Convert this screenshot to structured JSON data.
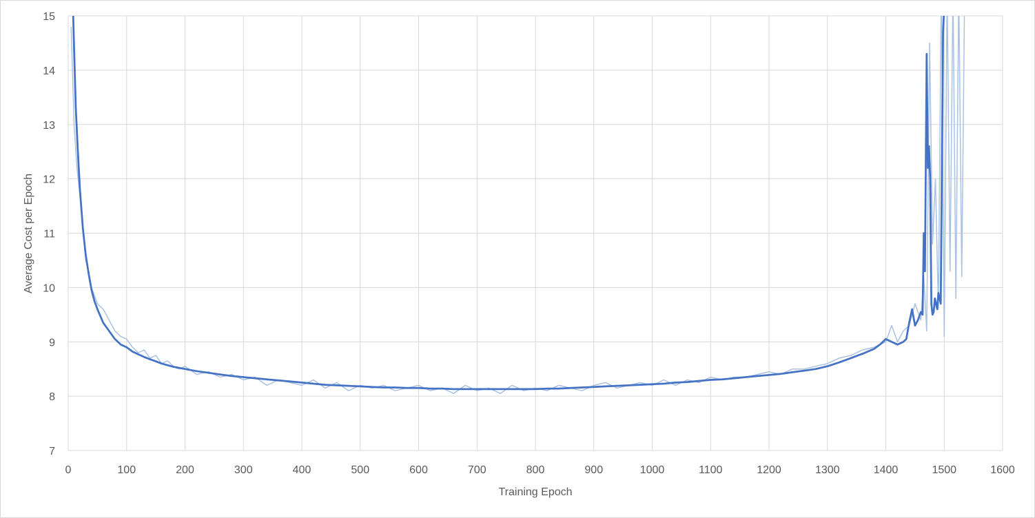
{
  "chart_data": {
    "type": "line",
    "xlabel": "Training Epoch",
    "ylabel": "Average Cost per Epoch",
    "xlim": [
      0,
      1600
    ],
    "ylim": [
      7,
      15
    ],
    "x_ticks": [
      "0",
      "100",
      "200",
      "300",
      "400",
      "500",
      "600",
      "700",
      "800",
      "900",
      "1000",
      "1100",
      "1200",
      "1300",
      "1400",
      "1500",
      "1600"
    ],
    "y_ticks": [
      "7",
      "8",
      "9",
      "10",
      "11",
      "12",
      "13",
      "14",
      "15"
    ],
    "grid": true,
    "legend": "none",
    "colors": {
      "raw": "#a9c1e3",
      "smoothed": "#4472c4",
      "grid": "#d9d9d9",
      "text": "#595959"
    },
    "series": [
      {
        "role": "raw",
        "x": [
          5,
          10,
          15,
          20,
          25,
          30,
          35,
          40,
          50,
          60,
          70,
          80,
          90,
          100,
          110,
          120,
          130,
          140,
          150,
          160,
          170,
          180,
          190,
          200,
          220,
          240,
          260,
          280,
          300,
          320,
          340,
          360,
          380,
          400,
          420,
          440,
          460,
          480,
          500,
          520,
          540,
          560,
          580,
          600,
          620,
          640,
          660,
          680,
          700,
          720,
          740,
          760,
          780,
          800,
          820,
          840,
          860,
          880,
          900,
          920,
          940,
          960,
          980,
          1000,
          1020,
          1040,
          1060,
          1080,
          1100,
          1120,
          1140,
          1160,
          1180,
          1200,
          1220,
          1240,
          1260,
          1280,
          1300,
          1320,
          1340,
          1360,
          1380,
          1400,
          1410,
          1420,
          1430,
          1440,
          1450,
          1460,
          1465,
          1470,
          1475,
          1480,
          1485,
          1490,
          1495,
          1500,
          1505,
          1510,
          1515,
          1520,
          1525,
          1530,
          1535
        ],
        "y": [
          14.8,
          13.0,
          12.2,
          11.7,
          11.1,
          10.5,
          10.3,
          10.0,
          9.7,
          9.6,
          9.4,
          9.2,
          9.1,
          9.05,
          8.9,
          8.8,
          8.85,
          8.7,
          8.75,
          8.6,
          8.65,
          8.55,
          8.5,
          8.55,
          8.4,
          8.45,
          8.35,
          8.4,
          8.3,
          8.35,
          8.2,
          8.3,
          8.25,
          8.2,
          8.3,
          8.15,
          8.25,
          8.1,
          8.2,
          8.15,
          8.2,
          8.1,
          8.15,
          8.2,
          8.1,
          8.15,
          8.05,
          8.2,
          8.1,
          8.15,
          8.05,
          8.2,
          8.1,
          8.15,
          8.1,
          8.2,
          8.15,
          8.1,
          8.2,
          8.25,
          8.15,
          8.2,
          8.25,
          8.2,
          8.3,
          8.2,
          8.3,
          8.25,
          8.35,
          8.3,
          8.35,
          8.35,
          8.4,
          8.45,
          8.4,
          8.5,
          8.5,
          8.55,
          8.6,
          8.7,
          8.75,
          8.85,
          8.9,
          9.0,
          9.3,
          9.0,
          9.2,
          9.3,
          9.7,
          9.4,
          10.2,
          9.2,
          14.5,
          10.8,
          12.0,
          9.6,
          15.5,
          9.1,
          15.5,
          10.3,
          15.5,
          9.8,
          15.5,
          10.2,
          15.5
        ]
      },
      {
        "role": "smoothed",
        "x": [
          8,
          10,
          13,
          16,
          20,
          25,
          30,
          35,
          40,
          45,
          50,
          60,
          70,
          80,
          90,
          100,
          110,
          120,
          130,
          140,
          150,
          160,
          170,
          180,
          190,
          200,
          220,
          240,
          260,
          280,
          300,
          320,
          340,
          360,
          380,
          400,
          420,
          440,
          460,
          480,
          500,
          520,
          540,
          560,
          580,
          600,
          620,
          640,
          660,
          680,
          700,
          720,
          740,
          760,
          780,
          800,
          820,
          840,
          860,
          880,
          900,
          920,
          940,
          960,
          980,
          1000,
          1020,
          1040,
          1060,
          1080,
          1100,
          1120,
          1140,
          1160,
          1180,
          1200,
          1220,
          1240,
          1260,
          1280,
          1300,
          1320,
          1340,
          1360,
          1380,
          1390,
          1400,
          1410,
          1420,
          1430,
          1435,
          1440,
          1445,
          1450,
          1455,
          1460,
          1463,
          1465,
          1467,
          1470,
          1472,
          1474,
          1476,
          1478,
          1480,
          1482,
          1484,
          1486,
          1488,
          1490,
          1492,
          1494,
          1496,
          1498,
          1500,
          1502
        ],
        "y": [
          15.2,
          14.4,
          13.3,
          12.6,
          11.8,
          11.1,
          10.6,
          10.25,
          9.95,
          9.75,
          9.6,
          9.35,
          9.2,
          9.05,
          8.95,
          8.9,
          8.82,
          8.77,
          8.72,
          8.68,
          8.64,
          8.6,
          8.57,
          8.54,
          8.52,
          8.5,
          8.46,
          8.43,
          8.4,
          8.37,
          8.35,
          8.33,
          8.31,
          8.29,
          8.27,
          8.25,
          8.23,
          8.21,
          8.2,
          8.19,
          8.18,
          8.17,
          8.16,
          8.16,
          8.15,
          8.15,
          8.14,
          8.14,
          8.13,
          8.13,
          8.13,
          8.13,
          8.13,
          8.13,
          8.13,
          8.13,
          8.14,
          8.14,
          8.15,
          8.16,
          8.17,
          8.18,
          8.19,
          8.2,
          8.21,
          8.22,
          8.23,
          8.25,
          8.26,
          8.28,
          8.3,
          8.31,
          8.33,
          8.35,
          8.37,
          8.39,
          8.41,
          8.44,
          8.47,
          8.5,
          8.55,
          8.62,
          8.7,
          8.78,
          8.87,
          8.95,
          9.05,
          9.0,
          8.95,
          9.0,
          9.05,
          9.35,
          9.6,
          9.3,
          9.4,
          9.55,
          9.5,
          11.0,
          10.3,
          14.3,
          12.2,
          12.6,
          12.0,
          9.7,
          9.5,
          9.55,
          9.8,
          9.7,
          9.6,
          9.9,
          9.8,
          9.7,
          12.2,
          14.7,
          15.2,
          15.2
        ]
      }
    ]
  }
}
